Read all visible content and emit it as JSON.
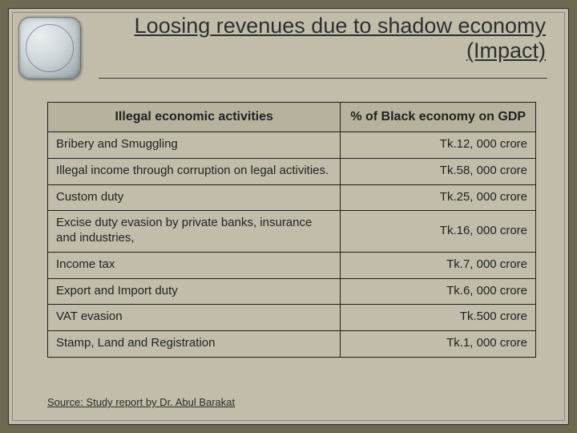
{
  "slide": {
    "title": "Loosing revenues due to shadow economy (Impact)",
    "source_line": "Source: Study report by Dr. Abul Barakat"
  },
  "table": {
    "columns": [
      "Illegal economic activities",
      "% of Black economy on GDP"
    ],
    "col_widths_pct": [
      60,
      40
    ],
    "header_bg": "#b6b29e",
    "border_color": "#1e1e1e",
    "header_fontsize": 16,
    "cell_fontsize": 15,
    "text_color": "#222222",
    "align": [
      "left",
      "right"
    ],
    "rows": [
      [
        "Bribery and Smuggling",
        "Tk.12, 000 crore"
      ],
      [
        "Illegal income through corruption on legal activities.",
        "Tk.58, 000 crore"
      ],
      [
        "Custom duty",
        "Tk.25, 000 crore"
      ],
      [
        "Excise duty evasion by private banks, insurance and industries,",
        "Tk.16, 000 crore"
      ],
      [
        "Income tax",
        "Tk.7, 000 crore"
      ],
      [
        "Export and Import duty",
        "Tk.6, 000 crore"
      ],
      [
        "VAT evasion",
        "Tk.500 crore"
      ],
      [
        "Stamp, Land and Registration",
        "Tk.1, 000 crore"
      ]
    ]
  },
  "style": {
    "outer_bg": "#6d6952",
    "slide_bg": "#c1bdaa",
    "title_color": "#2f2f2f",
    "title_fontsize": 27,
    "font_family": "Trebuchet MS"
  }
}
